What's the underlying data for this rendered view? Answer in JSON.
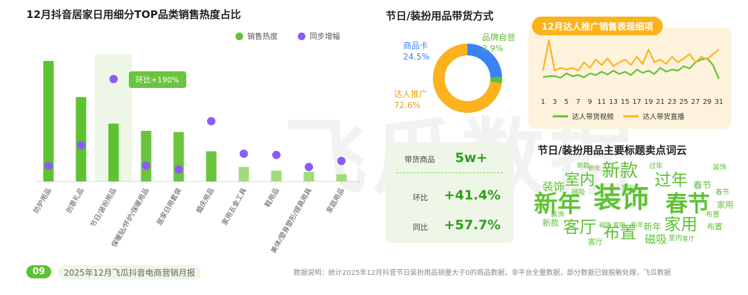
{
  "left_title": "12月抖音居家日用细分TOP品类销售热度占比",
  "legend": {
    "sales": "销售热度",
    "growth": "同步增幅"
  },
  "colors": {
    "green": "#5ec232",
    "green_light": "#9fdb7c",
    "purple": "#8b5cf6",
    "orange": "#fbb21c",
    "blue": "#3b82f6",
    "yellow_green": "#b5d334"
  },
  "tooltip": "环比+190%",
  "donut_title": "节日/装扮用品带货方式",
  "donut_labels": [
    {
      "name": "商品卡",
      "pct": "24.5%"
    },
    {
      "name": "品牌自营",
      "pct": "2.9%"
    },
    {
      "name": "达人推广",
      "pct": "72.6%"
    }
  ],
  "kpi": {
    "label": "带货商品",
    "value": "5w+",
    "mom_label": "环比",
    "mom_value": "+41.4%",
    "yoy_label": "同比",
    "yoy_value": "+57.7%"
  },
  "line_title": "12月达人推广销售表现细项",
  "line_legend": {
    "video": "达人带货视频",
    "live": "达人带货直播"
  },
  "wordcloud_title": "节日/装扮用品主要标题卖点词云",
  "words": [
    {
      "t": "装饰",
      "c": "#5ec232"
    },
    {
      "t": "新年",
      "c": "#5ec232"
    },
    {
      "t": "春节",
      "c": "#5ec232"
    },
    {
      "t": "新款",
      "c": "#5ec232"
    },
    {
      "t": "过年",
      "c": "#5ec232"
    },
    {
      "t": "室内",
      "c": "#5ec232"
    },
    {
      "t": "客厅",
      "c": "#5ec232"
    },
    {
      "t": "布置",
      "c": "#5ec232"
    },
    {
      "t": "家用",
      "c": "#5ec232"
    },
    {
      "t": "磁吸",
      "c": "#5ec232"
    },
    {
      "t": "装饰",
      "c": "#5ec232"
    },
    {
      "t": "春节",
      "c": "#5ec232"
    },
    {
      "t": "新年",
      "c": "#5ec232"
    },
    {
      "t": "新款",
      "c": "#5ec232"
    },
    {
      "t": "过年",
      "c": "#5ec232"
    },
    {
      "t": "春节",
      "c": "#5ec232"
    },
    {
      "t": "家用",
      "c": "#5ec232"
    },
    {
      "t": "布置",
      "c": "#5ec232"
    },
    {
      "t": "磁吸",
      "c": "#5ec232"
    },
    {
      "t": "室内",
      "c": "#5ec232"
    },
    {
      "t": "客厅",
      "c": "#5ec232"
    },
    {
      "t": "装饰",
      "c": "#5ec232"
    },
    {
      "t": "新年",
      "c": "#5ec232"
    },
    {
      "t": "新款",
      "c": "#5ec232"
    },
    {
      "t": "磁吸",
      "c": "#5ec232"
    },
    {
      "t": "新年",
      "c": "#5ec232"
    },
    {
      "t": "家用",
      "c": "#5ec232"
    },
    {
      "t": "布置",
      "c": "#5ec232"
    },
    {
      "t": "客厅",
      "c": "#5ec232"
    },
    {
      "t": "室内",
      "c": "#5ec232"
    },
    {
      "t": "装饰",
      "c": "#5ec232"
    }
  ],
  "footer": {
    "page_num": "09",
    "report": "2025年12月飞瓜抖音电商营销月报",
    "note": "数据说明：统计2025年12月抖音节日装扮用品销量大于0的商品数据，非平台全量数据，部分数据已做脱敏处理，飞瓜数据"
  },
  "watermark": "飞瓜数据",
  "chart_data": [
    {
      "type": "bar",
      "title": "12月抖音居家日用细分TOP品类销售热度占比",
      "categories": [
        "防护用品",
        "创意礼品",
        "节日/装扮用品",
        "保暖贴/怀炉/保暖用品",
        "居家日用套装",
        "婚庆用品",
        "家用五金工具",
        "鞋用品",
        "美体/塑身塑形/提高用具",
        "家庭用品"
      ],
      "series": [
        {
          "name": "销售热度",
          "values": [
            100,
            70,
            48,
            42,
            41,
            25,
            12,
            9,
            8,
            6
          ]
        },
        {
          "name": "同步增幅",
          "values": [
            13,
            30,
            85,
            13,
            10,
            50,
            23,
            22,
            12,
            17
          ]
        }
      ],
      "ylim": [
        0,
        100
      ],
      "annotations": [
        "环比+190%"
      ],
      "legend": "top-right"
    },
    {
      "type": "pie",
      "title": "节日/装扮用品带货方式",
      "categories": [
        "商品卡",
        "品牌自营",
        "达人推广"
      ],
      "values": [
        24.5,
        2.9,
        72.6
      ]
    },
    {
      "type": "line",
      "title": "12月达人推广销售表现细项",
      "x": [
        1,
        2,
        3,
        4,
        5,
        6,
        7,
        8,
        9,
        10,
        11,
        12,
        13,
        14,
        15,
        16,
        17,
        18,
        19,
        20,
        21,
        22,
        23,
        24,
        25,
        26,
        27,
        28,
        29,
        30,
        31
      ],
      "x_tick_labels": [
        "1",
        "3",
        "5",
        "7",
        "9",
        "11",
        "13",
        "15",
        "17",
        "19",
        "21",
        "23",
        "25",
        "27",
        "29",
        "31"
      ],
      "series": [
        {
          "name": "达人带货视频",
          "values": [
            28,
            30,
            30,
            27,
            35,
            30,
            32,
            28,
            35,
            32,
            38,
            33,
            40,
            34,
            38,
            32,
            42,
            36,
            40,
            34,
            45,
            38,
            42,
            40,
            48,
            44,
            55,
            60,
            62,
            50,
            25
          ]
        },
        {
          "name": "达人带货直播",
          "values": [
            40,
            95,
            40,
            45,
            42,
            45,
            40,
            55,
            45,
            60,
            50,
            62,
            48,
            55,
            60,
            50,
            65,
            52,
            78,
            55,
            60,
            52,
            65,
            55,
            62,
            70,
            55,
            65,
            60,
            70,
            78
          ]
        }
      ],
      "ylim": [
        0,
        100
      ],
      "legend": "bottom"
    }
  ]
}
